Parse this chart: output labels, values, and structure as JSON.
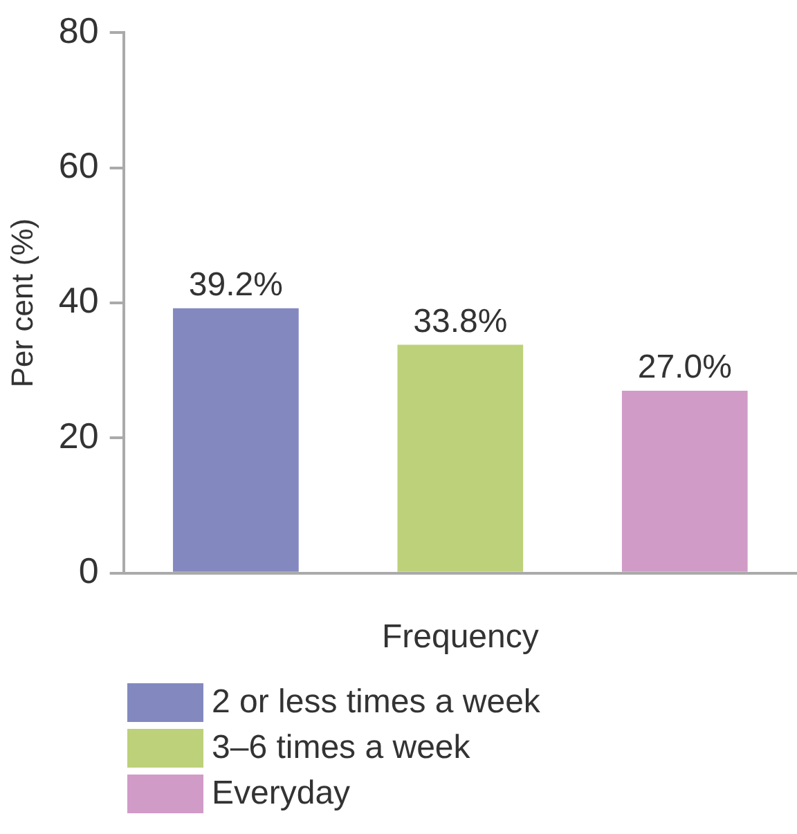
{
  "chart_data": {
    "type": "bar",
    "ylabel": "Per cent (%)",
    "xlabel": "Frequency",
    "categories": [
      null,
      null,
      null
    ],
    "series": [
      {
        "name": "2 or less times a week",
        "color": "#8389bf",
        "values": [
          39.2,
          null,
          null
        ],
        "value_labels": [
          "39.2%",
          null,
          null
        ]
      },
      {
        "name": "3–6 times a week",
        "color": "#bdd17a",
        "values": [
          null,
          33.8,
          null
        ],
        "value_labels": [
          null,
          "33.8%",
          null
        ]
      },
      {
        "name": "Everyday",
        "color": "#d09bc7",
        "values": [
          null,
          null,
          27.0
        ],
        "value_labels": [
          null,
          null,
          "27.0%"
        ]
      }
    ],
    "ylim": [
      0,
      80
    ],
    "yticks": [
      0,
      20,
      40,
      60,
      80
    ],
    "grid": false,
    "legend": "bottom"
  }
}
